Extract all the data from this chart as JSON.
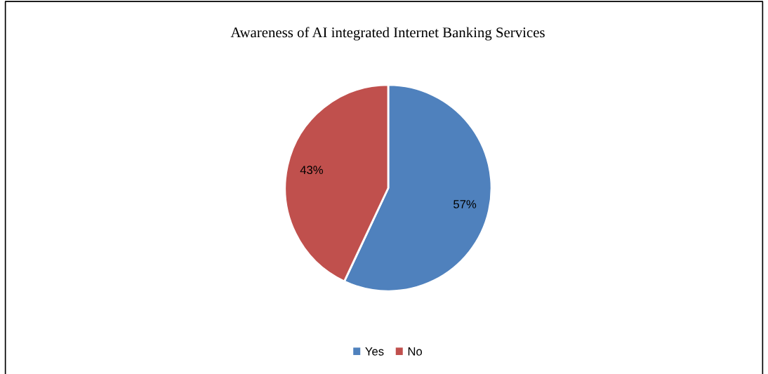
{
  "chart_data": {
    "type": "pie",
    "title": "Awareness of AI integrated Internet Banking Services",
    "categories": [
      "Yes",
      "No"
    ],
    "values": [
      57,
      43
    ],
    "colors": [
      "#4f81bd",
      "#c0504d"
    ],
    "value_labels": [
      "57%",
      "43%"
    ],
    "legend": "bottom"
  }
}
